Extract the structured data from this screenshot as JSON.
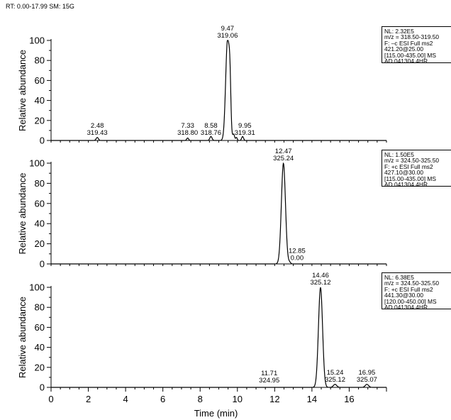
{
  "header": {
    "text": "RT: 0.00-17.99 SM: 15G"
  },
  "chart_data": [
    {
      "type": "line",
      "ylabel": "Relative abundance",
      "ylim": [
        0,
        100
      ],
      "yticks": [
        0,
        20,
        40,
        60,
        80,
        100
      ],
      "xlim": [
        0,
        18
      ],
      "info": [
        "NL: 2.32E5",
        "m/z = 318.50-319.50",
        "F: –c ESI Full ms2",
        "421.20@25.00",
        "[115.00-435.00] MS",
        "AD 041304 4HR"
      ],
      "peaks": [
        {
          "x": 2.48,
          "h": 3,
          "w": 0.06
        },
        {
          "x": 7.33,
          "h": 2.5,
          "w": 0.05
        },
        {
          "x": 8.58,
          "h": 4,
          "w": 0.06
        },
        {
          "x": 9.47,
          "h": 100,
          "w": 0.1
        },
        {
          "x": 9.6,
          "h": 38,
          "w": 0.05
        },
        {
          "x": 9.8,
          "h": 6,
          "w": 0.05
        },
        {
          "x": 9.95,
          "h": 3,
          "w": 0.04
        },
        {
          "x": 10.28,
          "h": 4,
          "w": 0.05
        }
      ],
      "annotations": [
        {
          "rt": "2.48",
          "mz": "319.43",
          "x": 2.48,
          "y": 3
        },
        {
          "rt": "7.33",
          "mz": "318.80",
          "x": 7.33,
          "y": 3
        },
        {
          "rt": "8.58",
          "mz": "318.76",
          "x": 8.58,
          "y": 3
        },
        {
          "rt": "9.47",
          "mz": "319.06",
          "x": 9.47,
          "y": 100
        },
        {
          "rt": "9.95",
          "mz": "319.31",
          "x": 10.4,
          "y": 3
        }
      ]
    },
    {
      "type": "line",
      "ylabel": "Relative abundance",
      "ylim": [
        0,
        100
      ],
      "yticks": [
        0,
        20,
        40,
        60,
        80,
        100
      ],
      "xlim": [
        0,
        18
      ],
      "info": [
        "NL: 1.50E5",
        "m/z = 324.50-325.50",
        "F: +c ESI Full ms2",
        "427.10@30.00",
        "[115.00-435.00] MS",
        "AD 041304 4HR"
      ],
      "peaks": [
        {
          "x": 12.47,
          "h": 100,
          "w": 0.11
        },
        {
          "x": 12.8,
          "h": 1.5,
          "w": 0.06
        }
      ],
      "annotations": [
        {
          "rt": "12.47",
          "mz": "325.24",
          "x": 12.47,
          "y": 100
        },
        {
          "rt": "12.85",
          "mz": "0.00",
          "x": 13.2,
          "y": 1
        }
      ]
    },
    {
      "type": "line",
      "ylabel": "Relative abundance",
      "ylim": [
        0,
        100
      ],
      "yticks": [
        0,
        20,
        40,
        60,
        80,
        100
      ],
      "xlim": [
        0,
        18
      ],
      "xlabel": "Time (min)",
      "xticks": [
        0,
        2,
        4,
        6,
        8,
        10,
        12,
        14,
        16
      ],
      "info": [
        "NL: 6.38E5",
        "m/z = 324.50-325.50",
        "F: +c ESI Full ms2",
        "441.30@30.00",
        "[120.00-450.00] MS",
        "AD 041304 4HR"
      ],
      "peaks": [
        {
          "x": 14.46,
          "h": 100,
          "w": 0.11
        },
        {
          "x": 15.24,
          "h": 3,
          "w": 0.09
        },
        {
          "x": 16.95,
          "h": 3,
          "w": 0.09
        }
      ],
      "annotations": [
        {
          "rt": "11.71",
          "mz": "324.95",
          "x": 11.71,
          "y": 2
        },
        {
          "rt": "14.46",
          "mz": "325.12",
          "x": 14.46,
          "y": 100
        },
        {
          "rt": "15.24",
          "mz": "325.12",
          "x": 15.24,
          "y": 3
        },
        {
          "rt": "16.95",
          "mz": "325.07",
          "x": 16.95,
          "y": 3
        }
      ]
    }
  ]
}
